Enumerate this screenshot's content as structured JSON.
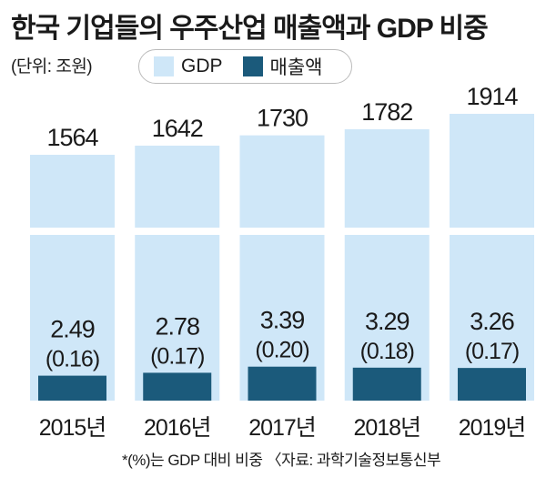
{
  "title": "한국 기업들의 우주산업 매출액과 GDP 비중",
  "unit": "(단위: 조원)",
  "legend": {
    "gdp": "GDP",
    "sales": "매출액",
    "gdp_color": "#cfe7f8",
    "sales_color": "#1b5a7b"
  },
  "footnote": "*(%)는 GDP 대비 비중 〈자료: 과학기술정보통신부",
  "chart_data": {
    "type": "bar",
    "categories": [
      "2015년",
      "2016년",
      "2017년",
      "2018년",
      "2019년"
    ],
    "series": [
      {
        "name": "GDP",
        "values": [
          1564,
          1642,
          1730,
          1782,
          1914
        ],
        "labels": [
          "1564",
          "1642",
          "1730",
          "1782",
          "1914"
        ]
      },
      {
        "name": "매출액",
        "values": [
          2.49,
          2.78,
          3.39,
          3.29,
          3.26
        ],
        "labels": [
          "2.49",
          "2.78",
          "3.39",
          "3.29",
          "3.26"
        ],
        "share_pct": [
          "(0.16)",
          "(0.17)",
          "(0.20)",
          "(0.18)",
          "(0.17)"
        ]
      }
    ],
    "axis_break": true,
    "grid": false,
    "legend_position": "top-left"
  }
}
